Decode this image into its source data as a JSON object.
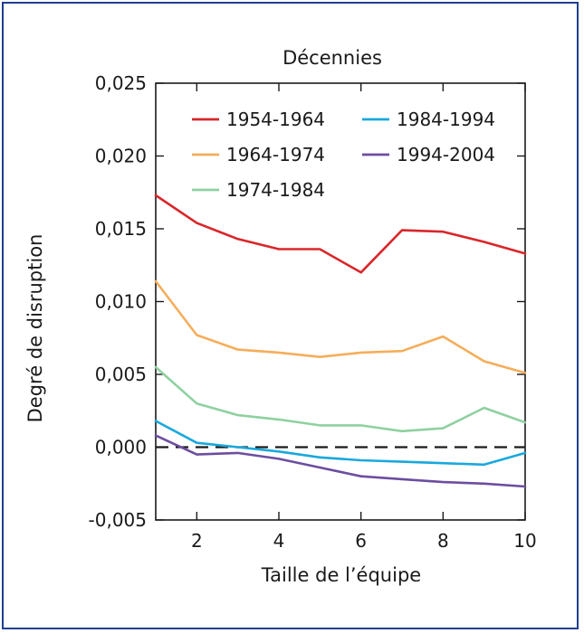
{
  "chart_data": {
    "type": "line",
    "title": "Décennies",
    "xlabel": "Taille de l’équipe",
    "ylabel": "Degré de disruption",
    "xlim": [
      1,
      10
    ],
    "ylim": [
      -0.005,
      0.025
    ],
    "x_ticks": [
      2,
      4,
      6,
      8,
      10
    ],
    "x_tick_labels": [
      "2",
      "4",
      "6",
      "8",
      "10"
    ],
    "y_ticks": [
      -0.005,
      0.0,
      0.005,
      0.01,
      0.015,
      0.02,
      0.025
    ],
    "y_tick_labels": [
      "-0,005",
      "0,000",
      "0,005",
      "0,010",
      "0,015",
      "0,020",
      "0,025"
    ],
    "reference_line": {
      "y": 0,
      "style": "dashed",
      "color": "#1a1a1a"
    },
    "grid": false,
    "legend_position": "top",
    "x": [
      1,
      2,
      3,
      4,
      5,
      6,
      7,
      8,
      9,
      10
    ],
    "series": [
      {
        "name": "1954-1964",
        "color": "#d9262a",
        "values": [
          0.0173,
          0.0154,
          0.0143,
          0.0136,
          0.0136,
          0.012,
          0.0149,
          0.0148,
          0.0141,
          0.0133
        ]
      },
      {
        "name": "1964-1974",
        "color": "#f5ad5a",
        "values": [
          0.0114,
          0.0077,
          0.0067,
          0.0065,
          0.0062,
          0.0065,
          0.0066,
          0.0076,
          0.0059,
          0.0051
        ]
      },
      {
        "name": "1974-1984",
        "color": "#8fd1a0",
        "values": [
          0.0055,
          0.003,
          0.0022,
          0.0019,
          0.0015,
          0.0015,
          0.0011,
          0.0013,
          0.0027,
          0.0017
        ]
      },
      {
        "name": "1984-1994",
        "color": "#19a8dd",
        "values": [
          0.0018,
          0.0003,
          0.0,
          -0.0003,
          -0.0007,
          -0.0009,
          -0.001,
          -0.0011,
          -0.0012,
          -0.0004
        ]
      },
      {
        "name": "1994-2004",
        "color": "#6c4ea0",
        "values": [
          0.0008,
          -0.0005,
          -0.0004,
          -0.0008,
          -0.0014,
          -0.002,
          -0.0022,
          -0.0024,
          -0.0025,
          -0.0027
        ]
      }
    ]
  }
}
